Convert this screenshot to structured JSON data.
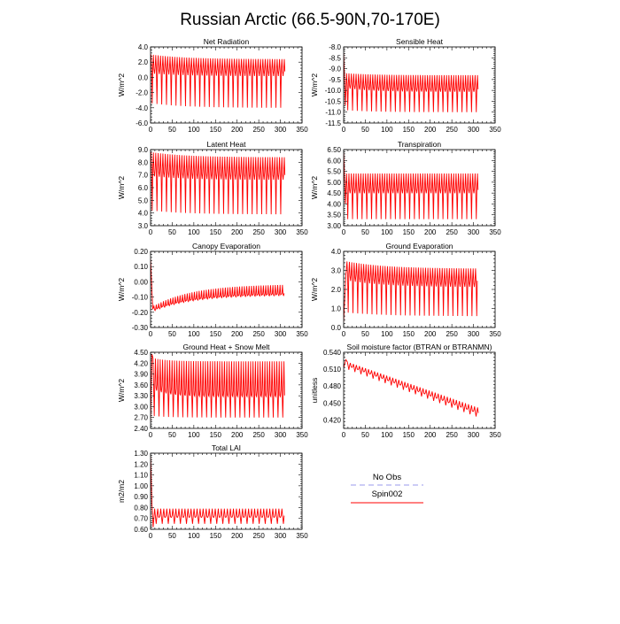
{
  "figure": {
    "title": "Russian Arctic (66.5-90N,70-170E)"
  },
  "legend": {
    "placement": "bottom-right",
    "entries": [
      {
        "label": "No Obs",
        "color": "#9999ee",
        "style": "dashed"
      },
      {
        "label": "Spin002",
        "color": "#ff0000",
        "style": "solid"
      }
    ]
  },
  "chart_data": [
    {
      "type": "line",
      "title": "Net Radiation",
      "ylabel": "W/m^2",
      "xlim": [
        0,
        350
      ],
      "ylim": [
        -6.0,
        4.0
      ],
      "xticks": [
        0,
        50,
        100,
        150,
        200,
        250,
        300,
        350
      ],
      "yticks": [
        -6.0,
        -4.0,
        -2.0,
        0.0,
        2.0,
        4.0
      ],
      "ytick_labels": [
        "-6.0",
        "-4.0",
        "-2.0",
        "0.0",
        "2.0",
        "4.0"
      ],
      "x_range": [
        1,
        310
      ],
      "period": 5.5,
      "series": [
        {
          "name": "Spin002",
          "color": "#ff0000",
          "start": {
            "high": 3.0,
            "low": -3.4,
            "mean": 1.2
          },
          "end": {
            "high": 2.4,
            "low": -4.0,
            "mean": 0.9
          },
          "tau": 80
        }
      ]
    },
    {
      "type": "line",
      "title": "Sensible Heat",
      "ylabel": "W/m^2",
      "xlim": [
        0,
        350
      ],
      "ylim": [
        -11.5,
        -8.0
      ],
      "xticks": [
        0,
        50,
        100,
        150,
        200,
        250,
        300,
        350
      ],
      "yticks": [
        -11.5,
        -11.0,
        -10.5,
        -10.0,
        -9.5,
        -9.0,
        -8.5,
        -8.0
      ],
      "ytick_labels": [
        "-11.5",
        "-11.0",
        "-10.5",
        "-10.0",
        "-9.5",
        "-9.0",
        "-8.5",
        "-8.0"
      ],
      "x_range": [
        1,
        310
      ],
      "period": 5.5,
      "series": [
        {
          "name": "Spin002",
          "color": "#ff0000",
          "start": {
            "high": -9.2,
            "low": -10.9,
            "mean": -9.7
          },
          "end": {
            "high": -9.3,
            "low": -11.0,
            "mean": -9.9
          },
          "tau": 60,
          "initial": [
            {
              "x": 0,
              "y": -8.3
            },
            {
              "x": 4,
              "y": -10.7
            }
          ]
        }
      ]
    },
    {
      "type": "line",
      "title": "Latent Heat",
      "ylabel": "W/m^2",
      "xlim": [
        0,
        350
      ],
      "ylim": [
        3.0,
        9.0
      ],
      "xticks": [
        0,
        50,
        100,
        150,
        200,
        250,
        300,
        350
      ],
      "yticks": [
        3.0,
        4.0,
        5.0,
        6.0,
        7.0,
        8.0,
        9.0
      ],
      "ytick_labels": [
        "3.0",
        "4.0",
        "5.0",
        "6.0",
        "7.0",
        "8.0",
        "9.0"
      ],
      "x_range": [
        1,
        310
      ],
      "period": 5.5,
      "series": [
        {
          "name": "Spin002",
          "color": "#ff0000",
          "start": {
            "high": 8.8,
            "low": 4.2,
            "mean": 7.4
          },
          "end": {
            "high": 8.4,
            "low": 3.9,
            "mean": 7.1
          },
          "tau": 80
        }
      ]
    },
    {
      "type": "line",
      "title": "Transpiration",
      "ylabel": "W/m^2",
      "xlim": [
        0,
        350
      ],
      "ylim": [
        3.0,
        6.5
      ],
      "xticks": [
        0,
        50,
        100,
        150,
        200,
        250,
        300,
        350
      ],
      "yticks": [
        3.0,
        3.5,
        4.0,
        4.5,
        5.0,
        5.5,
        6.0,
        6.5
      ],
      "ytick_labels": [
        "3.00",
        "3.50",
        "4.00",
        "4.50",
        "5.00",
        "5.50",
        "6.00",
        "6.50"
      ],
      "x_range": [
        1,
        310
      ],
      "period": 5.5,
      "series": [
        {
          "name": "Spin002",
          "color": "#ff0000",
          "start": {
            "high": 5.4,
            "low": 3.3,
            "mean": 4.7
          },
          "end": {
            "high": 5.4,
            "low": 3.3,
            "mean": 4.7
          },
          "tau": 60,
          "initial": [
            {
              "x": 0,
              "y": 6.4
            },
            {
              "x": 4,
              "y": 4.0
            }
          ]
        }
      ]
    },
    {
      "type": "line",
      "title": "Canopy Evaporation",
      "ylabel": "W/m^2",
      "xlim": [
        0,
        350
      ],
      "ylim": [
        -0.3,
        0.2
      ],
      "xticks": [
        0,
        50,
        100,
        150,
        200,
        250,
        300,
        350
      ],
      "yticks": [
        -0.3,
        -0.2,
        -0.1,
        0.0,
        0.1,
        0.2
      ],
      "ytick_labels": [
        "-0.30",
        "-0.20",
        "-0.10",
        "0.00",
        "0.10",
        "0.20"
      ],
      "x_range": [
        1,
        310
      ],
      "period": 5.5,
      "series": [
        {
          "name": "Spin002",
          "color": "#ff0000",
          "start": {
            "high": -0.17,
            "low": -0.2,
            "mean": -0.19
          },
          "end": {
            "high": -0.02,
            "low": -0.09,
            "mean": -0.08
          },
          "tau": 90,
          "initial": [
            {
              "x": 0,
              "y": 0.15
            },
            {
              "x": 5,
              "y": -0.18
            }
          ]
        }
      ]
    },
    {
      "type": "line",
      "title": "Ground Evaporation",
      "ylabel": "W/m^2",
      "xlim": [
        0,
        350
      ],
      "ylim": [
        0.0,
        4.0
      ],
      "xticks": [
        0,
        50,
        100,
        150,
        200,
        250,
        300,
        350
      ],
      "yticks": [
        0.0,
        1.0,
        2.0,
        3.0,
        4.0
      ],
      "ytick_labels": [
        "0.0",
        "1.0",
        "2.0",
        "3.0",
        "4.0"
      ],
      "x_range": [
        1,
        310
      ],
      "period": 5.5,
      "series": [
        {
          "name": "Spin002",
          "color": "#ff0000",
          "start": {
            "high": 3.5,
            "low": 0.8,
            "mean": 2.8
          },
          "end": {
            "high": 3.1,
            "low": 0.6,
            "mean": 2.4
          },
          "tau": 90,
          "initial": [
            {
              "x": 0,
              "y": 0.3
            },
            {
              "x": 5,
              "y": 2.7
            }
          ]
        }
      ]
    },
    {
      "type": "line",
      "title": "Ground Heat + Snow Melt",
      "ylabel": "W/m^2",
      "xlim": [
        0,
        350
      ],
      "ylim": [
        2.4,
        4.5
      ],
      "xticks": [
        0,
        50,
        100,
        150,
        200,
        250,
        300,
        350
      ],
      "yticks": [
        2.4,
        2.7,
        3.0,
        3.3,
        3.6,
        3.9,
        4.2,
        4.5
      ],
      "ytick_labels": [
        "2.40",
        "2.70",
        "3.00",
        "3.30",
        "3.60",
        "3.90",
        "4.20",
        "4.50"
      ],
      "x_range": [
        1,
        310
      ],
      "period": 5.5,
      "series": [
        {
          "name": "Spin002",
          "color": "#ff0000",
          "start": {
            "high": 4.35,
            "low": 2.75,
            "mean": 3.65
          },
          "end": {
            "high": 4.25,
            "low": 2.7,
            "mean": 3.38
          },
          "tau": 35,
          "initial": [
            {
              "x": 0,
              "y": 2.6
            },
            {
              "x": 3,
              "y": 4.45
            }
          ]
        }
      ]
    },
    {
      "type": "line",
      "title": "Soil moisture factor (BTRAN or BTRANMN)",
      "ylabel": "unitless",
      "xlim": [
        0,
        350
      ],
      "ylim": [
        0.405,
        0.54
      ],
      "xticks": [
        0,
        50,
        100,
        150,
        200,
        250,
        300,
        350
      ],
      "yticks": [
        0.42,
        0.45,
        0.48,
        0.51,
        0.54
      ],
      "ytick_labels": [
        "0.420",
        "0.450",
        "0.480",
        "0.510",
        "0.540"
      ],
      "x_range": [
        1,
        310
      ],
      "period": 7,
      "series": [
        {
          "name": "Spin002",
          "color": "#ff0000",
          "start": {
            "high": 0.525,
            "low": 0.512,
            "mean": 0.519
          },
          "end": {
            "high": 0.442,
            "low": 0.425,
            "mean": 0.433
          },
          "tau": 0,
          "initial": [
            {
              "x": 0,
              "y": 0.512
            },
            {
              "x": 5,
              "y": 0.527
            }
          ]
        }
      ]
    },
    {
      "type": "line",
      "title": "Total LAI",
      "ylabel": "m2/m2",
      "xlim": [
        0,
        350
      ],
      "ylim": [
        0.6,
        1.3
      ],
      "xticks": [
        0,
        50,
        100,
        150,
        200,
        250,
        300,
        350
      ],
      "yticks": [
        0.6,
        0.7,
        0.8,
        0.9,
        1.0,
        1.1,
        1.2,
        1.3
      ],
      "ytick_labels": [
        "0.60",
        "0.70",
        "0.80",
        "0.90",
        "1.00",
        "1.10",
        "1.20",
        "1.30"
      ],
      "x_range": [
        1,
        310
      ],
      "period": 7,
      "series": [
        {
          "name": "Spin002",
          "color": "#ff0000",
          "start": {
            "high": 0.79,
            "low": 0.65,
            "mean": 0.72
          },
          "end": {
            "high": 0.79,
            "low": 0.65,
            "mean": 0.72
          },
          "tau": 0,
          "initial": [
            {
              "x": 0,
              "y": 1.27
            },
            {
              "x": 3,
              "y": 0.85
            },
            {
              "x": 6,
              "y": 0.62
            }
          ]
        }
      ]
    }
  ]
}
